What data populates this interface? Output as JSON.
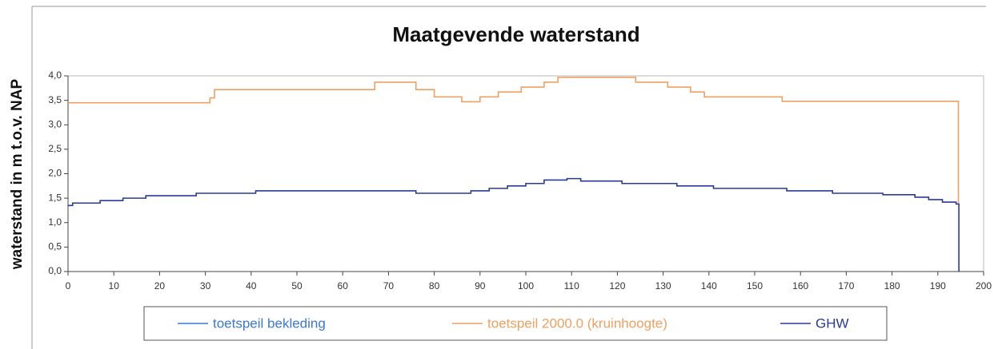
{
  "chart_data": {
    "type": "line",
    "step": "post",
    "title": "Maatgevende waterstand",
    "y_label": "waterstand in m t.o.v. NAP",
    "xlim": [
      0,
      200
    ],
    "xticks": [
      0,
      10,
      20,
      30,
      40,
      50,
      60,
      70,
      80,
      90,
      100,
      110,
      120,
      130,
      140,
      150,
      160,
      170,
      180,
      190,
      200
    ],
    "ylim": [
      0,
      4
    ],
    "yticks": [
      {
        "value": 0,
        "label": "0,0"
      },
      {
        "value": 0.5,
        "label": "0,5"
      },
      {
        "value": 1,
        "label": "1,0"
      },
      {
        "value": 1.5,
        "label": "1,5"
      },
      {
        "value": 2,
        "label": "2,0"
      },
      {
        "value": 2.5,
        "label": "2,5"
      },
      {
        "value": 3,
        "label": "3,0"
      },
      {
        "value": 3.5,
        "label": "3,5"
      },
      {
        "value": 4,
        "label": "4,0"
      }
    ],
    "grid": false,
    "series": [
      {
        "name": "toetspeil bekleding",
        "color": "#3a78d8",
        "x": [
          0,
          194.5
        ],
        "values": [
          null,
          null
        ]
      },
      {
        "name": "toetspeil 2000.0 (kruinhoogte)",
        "color": "#f0a060",
        "x": [
          0,
          31,
          32,
          67,
          76,
          80,
          86,
          90,
          94,
          99,
          104,
          107,
          124,
          131,
          136,
          139,
          156,
          194.5
        ],
        "values": [
          3.45,
          3.55,
          3.72,
          3.87,
          3.72,
          3.57,
          3.47,
          3.57,
          3.67,
          3.77,
          3.87,
          3.97,
          3.87,
          3.77,
          3.67,
          3.57,
          3.48,
          1.4
        ]
      },
      {
        "name": "GHW",
        "color": "#2a3a9a",
        "x": [
          0,
          1,
          7,
          12,
          17,
          28,
          41,
          76,
          88,
          92,
          96,
          100,
          104,
          109,
          112,
          121,
          133,
          141,
          157,
          167,
          178,
          185,
          188,
          191,
          194,
          194.6
        ],
        "values": [
          1.35,
          1.4,
          1.45,
          1.5,
          1.55,
          1.6,
          1.65,
          1.6,
          1.65,
          1.7,
          1.75,
          1.8,
          1.87,
          1.9,
          1.85,
          1.8,
          1.75,
          1.7,
          1.65,
          1.6,
          1.57,
          1.52,
          1.47,
          1.42,
          1.38,
          0
        ]
      }
    ]
  }
}
